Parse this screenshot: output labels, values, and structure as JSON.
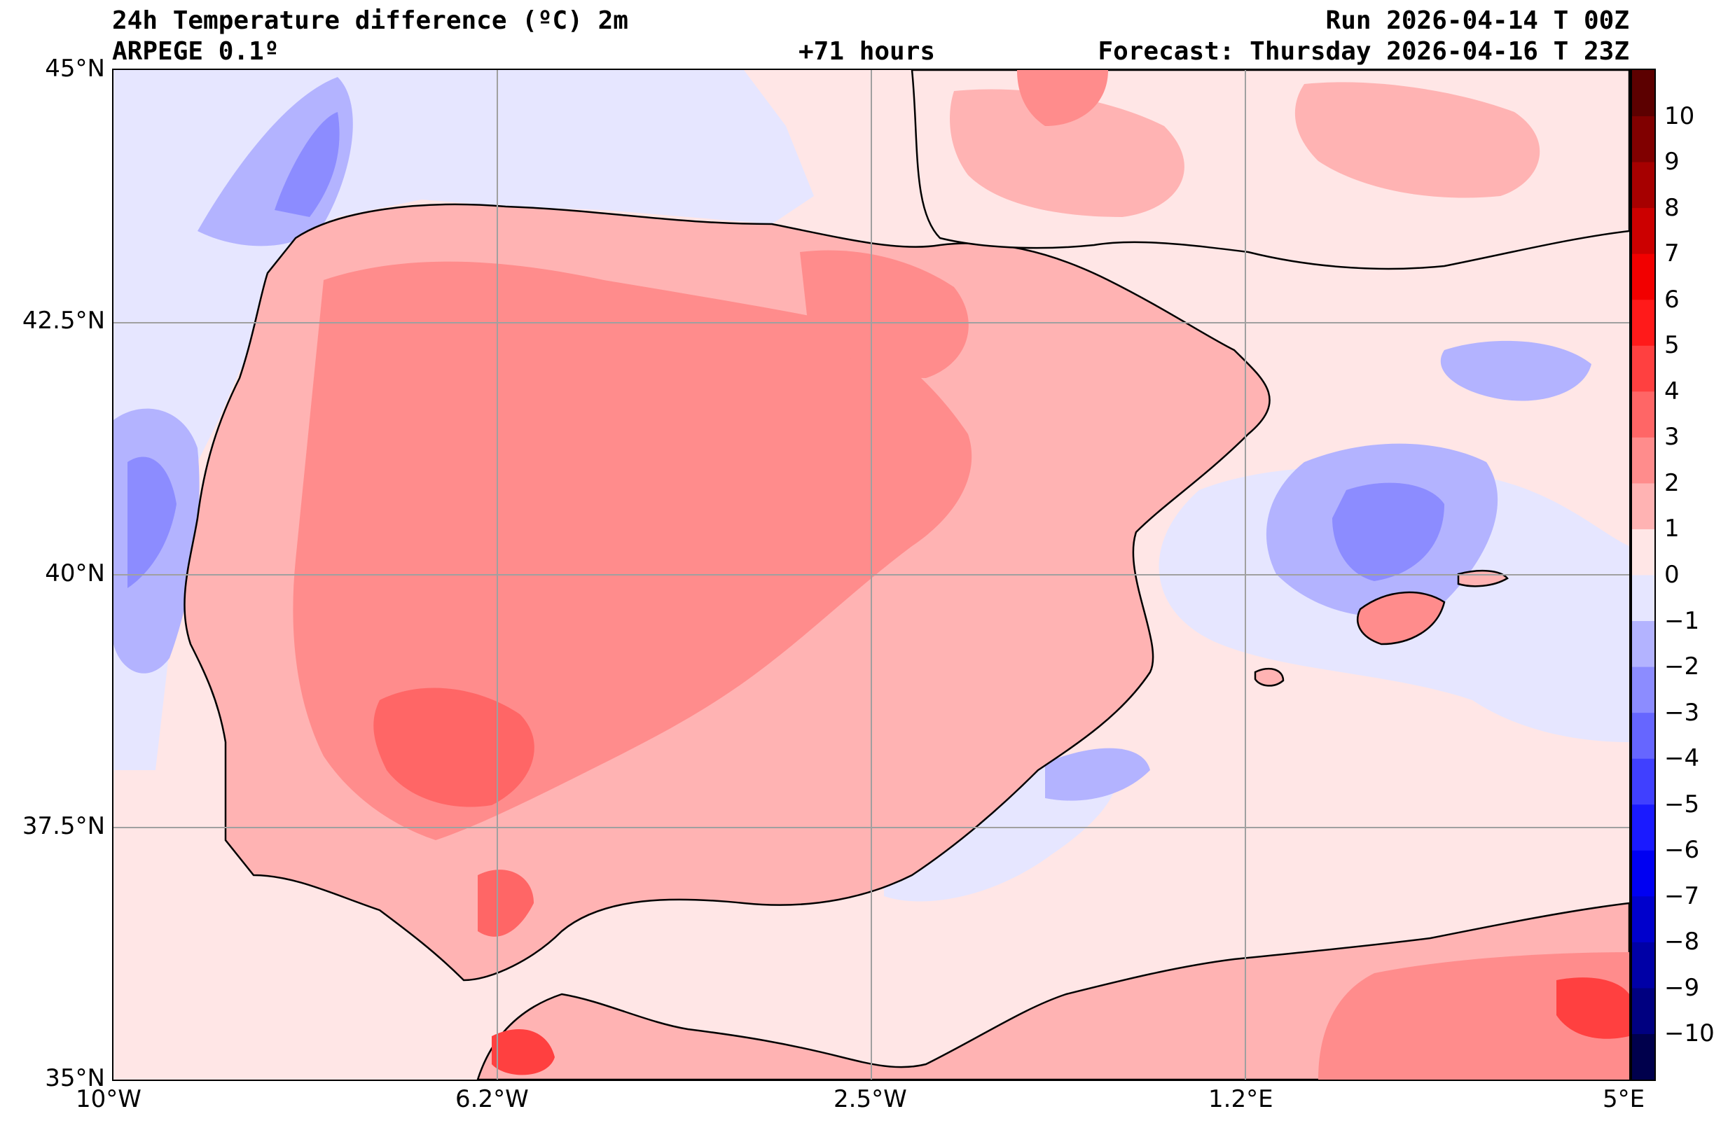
{
  "header": {
    "title": "24h Temperature difference (ºC) 2m",
    "run": "Run 2026-04-14 T 00Z",
    "model": "ARPEGE 0.1º",
    "lead": "+71 hours",
    "forecast": "Forecast: Thursday 2026-04-16 T 23Z"
  },
  "map": {
    "lat_labels": [
      "45°N",
      "42.5°N",
      "40°N",
      "37.5°N",
      "35°N"
    ],
    "lon_labels": [
      "10°W",
      "6.2°W",
      "2.5°W",
      "1.2°E",
      "5°E"
    ],
    "extent": {
      "lon_min": -10,
      "lon_max": 5,
      "lat_min": 35,
      "lat_max": 45
    },
    "gridlines": true
  },
  "colorbar": {
    "min": -11,
    "max": 11,
    "step": 1,
    "labels": [
      "10",
      "9",
      "8",
      "7",
      "6",
      "5",
      "4",
      "3",
      "2",
      "1",
      "0",
      "−1",
      "−2",
      "−3",
      "−4",
      "−5",
      "−6",
      "−7",
      "−8",
      "−9",
      "−10"
    ],
    "colors_low_to_high": [
      "#00004c",
      "#000080",
      "#0000a6",
      "#0000cc",
      "#0000f2",
      "#1a1aff",
      "#4040ff",
      "#6666ff",
      "#8c8cff",
      "#b3b3ff",
      "#e6e6ff",
      "#ffe6e6",
      "#ffb3b3",
      "#ff8c8c",
      "#ff6666",
      "#ff4040",
      "#ff1a1a",
      "#f20000",
      "#cc0000",
      "#a60000",
      "#800000",
      "#5c0000"
    ]
  }
}
